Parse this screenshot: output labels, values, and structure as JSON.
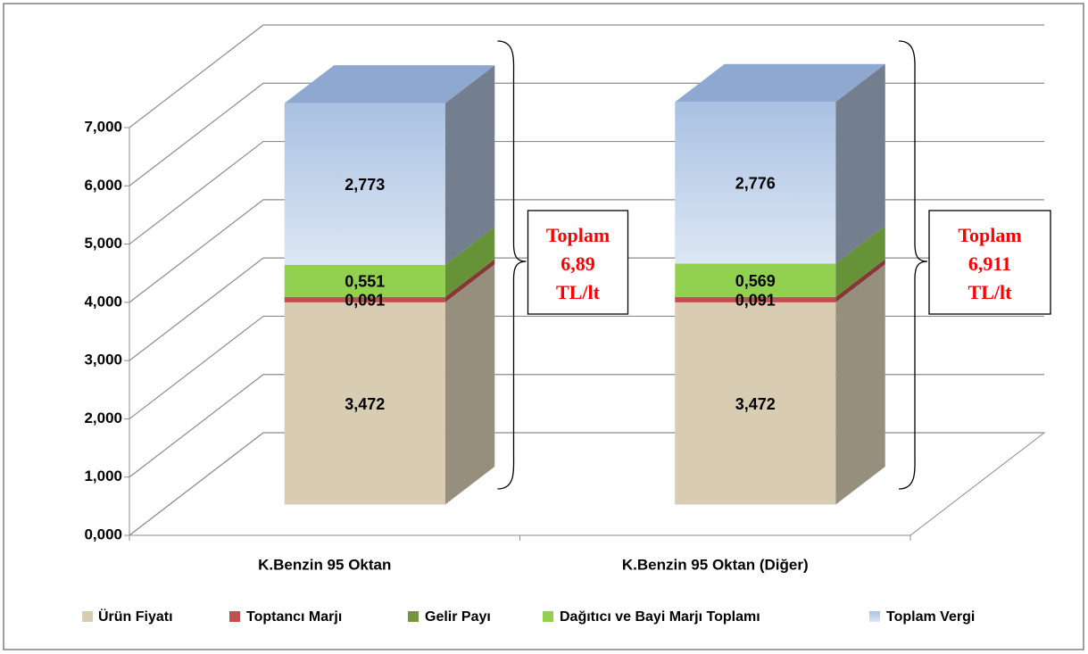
{
  "chart_data": {
    "type": "bar3d_stacked",
    "categories": [
      "K.Benzin 95 Oktan",
      "K.Benzin 95 Oktan (Diğer)"
    ],
    "series": [
      {
        "name": "Ürün Fiyatı",
        "color": "#d8ccb2",
        "values": [
          3.472,
          3.472
        ],
        "value_labels": [
          "3,472",
          "3,472"
        ]
      },
      {
        "name": "Toptancı Marjı",
        "color": "#c0504d",
        "values": [
          0.091,
          0.091
        ],
        "value_labels": [
          "0,091",
          "0,091"
        ]
      },
      {
        "name": "Gelir Payı",
        "color": "#77933c",
        "values": [
          0.003,
          0.003
        ]
      },
      {
        "name": "Dağıtıcı ve Bayi Marjı Toplamı",
        "color": "#92d050",
        "values": [
          0.551,
          0.569
        ],
        "value_labels": [
          "0,551",
          "0,569"
        ]
      },
      {
        "name": "Toplam Vergi",
        "color": "#b9cde5",
        "values": [
          2.773,
          2.776
        ],
        "value_labels": [
          "2,773",
          "2,776"
        ]
      }
    ],
    "ylim": [
      0,
      7
    ],
    "yticks": [
      {
        "value": 0,
        "label": "0,000"
      },
      {
        "value": 1,
        "label": "1,000"
      },
      {
        "value": 2,
        "label": "2,000"
      },
      {
        "value": 3,
        "label": "3,000"
      },
      {
        "value": 4,
        "label": "4,000"
      },
      {
        "value": 5,
        "label": "5,000"
      },
      {
        "value": 6,
        "label": "6,000"
      },
      {
        "value": 7,
        "label": "7,000"
      }
    ],
    "grid": true,
    "legend": "bottom",
    "annotations": [
      {
        "lines": [
          "Toplam",
          "6,89",
          "TL/lt"
        ]
      },
      {
        "lines": [
          "Toplam",
          "6,911",
          "TL/lt"
        ]
      }
    ]
  }
}
